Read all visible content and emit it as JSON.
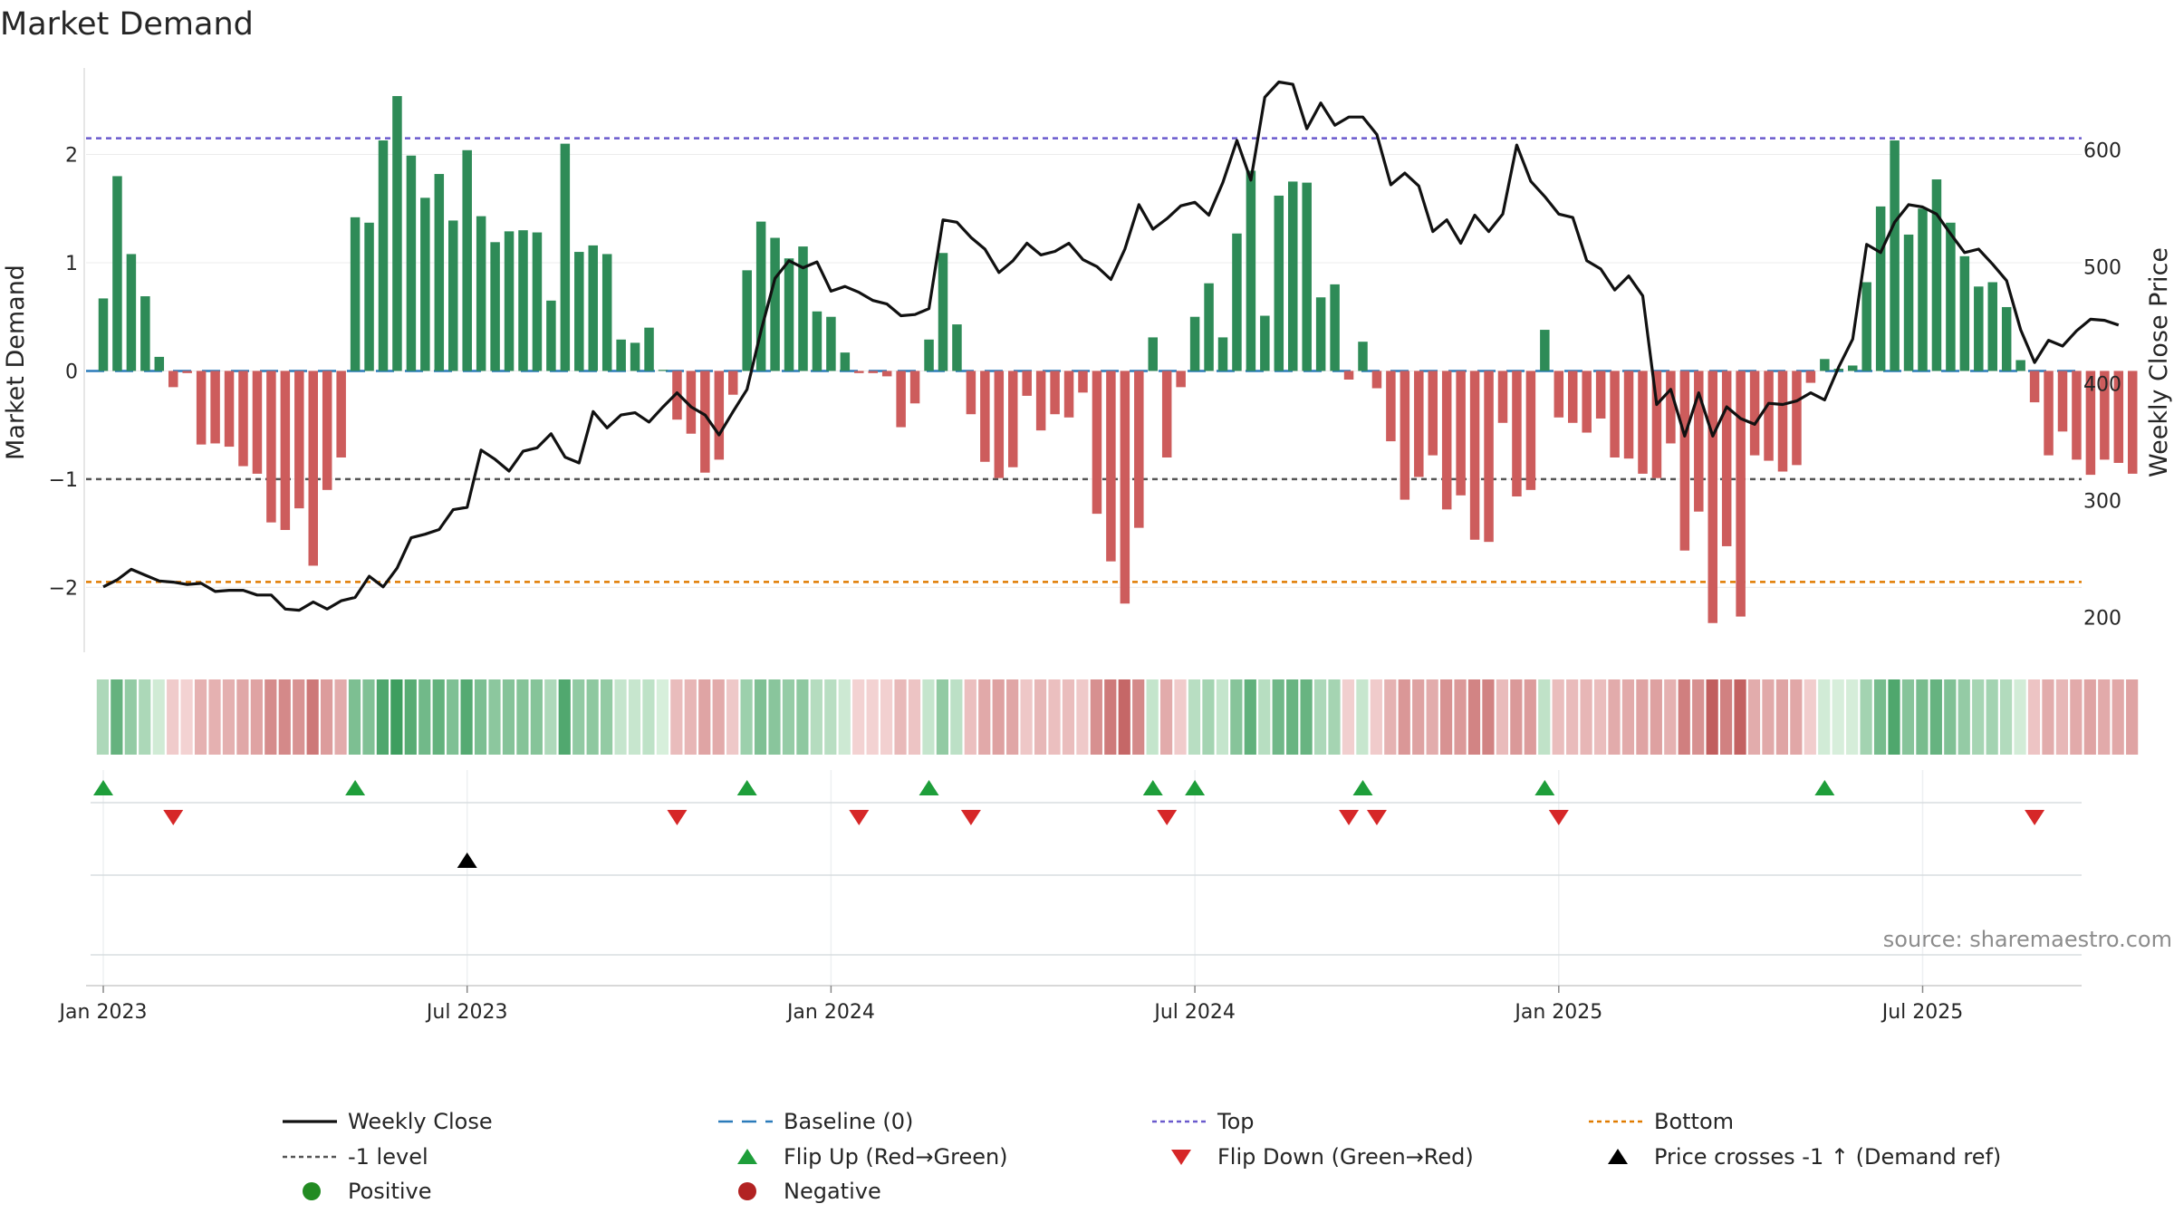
{
  "colors": {
    "positive_bar": "#2e8b57",
    "negative_bar": "#cd5c5c",
    "close_line": "#111111",
    "baseline": "#2b7bba",
    "top_line": "#6a5acd",
    "minus1_line": "#555555",
    "bottom_line": "#e07b00",
    "flip_up": "#1e9e3a",
    "flip_down": "#d62728",
    "cross_marker": "#000000",
    "positive_dot": "#228b22",
    "negative_dot": "#b22222"
  },
  "chart_data": {
    "type": "bar",
    "title": "Market Demand",
    "ylabel_left": "Market Demand",
    "ylabel_right": "Weekly Close Price",
    "source": "source: sharemaestro.com",
    "y_left_range": [
      -2.6,
      2.8
    ],
    "y_right_range": [
      170,
      670
    ],
    "y_left_ticks": [
      {
        "v": 2,
        "label": "2"
      },
      {
        "v": 1,
        "label": "1"
      },
      {
        "v": 0,
        "label": "0"
      },
      {
        "v": -1,
        "label": "−1"
      },
      {
        "v": -2,
        "label": "−2"
      }
    ],
    "y_right_ticks": [
      {
        "v": 600,
        "label": "600"
      },
      {
        "v": 500,
        "label": "500"
      },
      {
        "v": 400,
        "label": "400"
      },
      {
        "v": 300,
        "label": "300"
      },
      {
        "v": 200,
        "label": "200"
      }
    ],
    "x_ticks": [
      {
        "week": 0,
        "label": "Jan 2023"
      },
      {
        "week": 26,
        "label": "Jul 2023"
      },
      {
        "week": 52,
        "label": "Jan 2024"
      },
      {
        "week": 78,
        "label": "Jul 2024"
      },
      {
        "week": 104,
        "label": "Jan 2025"
      },
      {
        "week": 130,
        "label": "Jul 2025"
      }
    ],
    "start_date": "2023-01-02",
    "reference_levels": {
      "top": 2.15,
      "minus1": -1.0,
      "bottom": -1.95,
      "baseline": 0
    },
    "demand": [
      0.67,
      1.8,
      1.08,
      0.69,
      0.13,
      -0.15,
      -0.02,
      -0.68,
      -0.67,
      -0.7,
      -0.88,
      -0.95,
      -1.4,
      -1.47,
      -1.27,
      -1.8,
      -1.1,
      -0.8,
      1.42,
      1.37,
      2.13,
      2.54,
      1.99,
      1.6,
      1.82,
      1.39,
      2.04,
      1.43,
      1.19,
      1.29,
      1.3,
      1.28,
      0.65,
      2.1,
      1.1,
      1.16,
      1.08,
      0.29,
      0.26,
      0.4,
      0.01,
      -0.45,
      -0.58,
      -0.94,
      -0.82,
      -0.22,
      0.93,
      1.38,
      1.23,
      1.04,
      1.15,
      0.55,
      0.5,
      0.17,
      -0.02,
      -0.02,
      -0.05,
      -0.52,
      -0.3,
      0.29,
      1.09,
      0.43,
      -0.4,
      -0.84,
      -0.99,
      -0.89,
      -0.23,
      -0.55,
      -0.4,
      -0.43,
      -0.2,
      -1.32,
      -1.76,
      -2.15,
      -1.45,
      0.31,
      -0.8,
      -0.15,
      0.5,
      0.81,
      0.31,
      1.27,
      1.85,
      0.51,
      1.62,
      1.75,
      1.74,
      0.68,
      0.8,
      -0.08,
      0.27,
      -0.16,
      -0.65,
      -1.19,
      -0.98,
      -0.78,
      -1.28,
      -1.15,
      -1.56,
      -1.58,
      -0.48,
      -1.16,
      -1.1,
      0.38,
      -0.43,
      -0.48,
      -0.57,
      -0.44,
      -0.8,
      -0.81,
      -0.95,
      -0.99,
      -0.67,
      -1.66,
      -1.3,
      -2.33,
      -1.62,
      -2.27,
      -0.78,
      -0.83,
      -0.93,
      -0.87,
      -0.11,
      0.11,
      0.02,
      0.05,
      0.82,
      1.52,
      2.13,
      1.26,
      1.5,
      1.77,
      1.37,
      1.06,
      0.78,
      0.82,
      0.59,
      0.1,
      -0.29,
      -0.78,
      -0.56,
      -0.82,
      -0.96,
      -0.82,
      -0.85,
      -0.95
    ],
    "close": [
      226,
      232,
      241,
      236,
      231,
      230,
      228,
      229,
      222,
      223,
      223,
      219,
      219,
      207,
      206,
      213,
      207,
      214,
      217,
      235,
      226,
      242,
      268,
      271,
      275,
      292,
      294,
      343,
      335,
      325,
      342,
      345,
      357,
      337,
      332,
      376,
      362,
      373,
      375,
      367,
      380,
      392,
      380,
      373,
      356,
      376,
      395,
      445,
      490,
      505,
      499,
      504,
      479,
      483,
      478,
      471,
      468,
      458,
      459,
      464,
      540,
      538,
      525,
      515,
      495,
      505,
      520,
      510,
      513,
      520,
      506,
      500,
      489,
      515,
      553,
      532,
      541,
      552,
      555,
      544,
      572,
      608,
      574,
      645,
      658,
      656,
      618,
      640,
      621,
      628,
      628,
      613,
      570,
      580,
      569,
      530,
      540,
      520,
      544,
      530,
      545,
      604,
      573,
      560,
      545,
      542,
      505,
      498,
      480,
      492,
      475,
      382,
      395,
      355,
      392,
      355,
      380,
      370,
      365,
      383,
      382,
      385,
      392,
      386,
      414,
      438,
      519,
      512,
      538,
      553,
      551,
      545,
      528,
      512,
      515,
      502,
      488,
      446,
      418,
      437,
      432,
      445,
      455,
      454,
      450
    ]
  },
  "legend": {
    "items": [
      {
        "label": "Weekly Close",
        "kind": "line"
      },
      {
        "label": "Baseline (0)",
        "kind": "dash"
      },
      {
        "label": "Top",
        "kind": "dot-purple"
      },
      {
        "label": "Bottom",
        "kind": "dot-orange"
      },
      {
        "label": "-1 level",
        "kind": "dot-gray"
      },
      {
        "label": "Flip Up (Red→Green)",
        "kind": "tri-up-green"
      },
      {
        "label": "Flip Down (Green→Red)",
        "kind": "tri-down-red"
      },
      {
        "label": "Price crosses -1 ↑ (Demand ref)",
        "kind": "tri-up-black"
      },
      {
        "label": "Positive",
        "kind": "dot-green"
      },
      {
        "label": "Negative",
        "kind": "dot-red"
      }
    ]
  }
}
